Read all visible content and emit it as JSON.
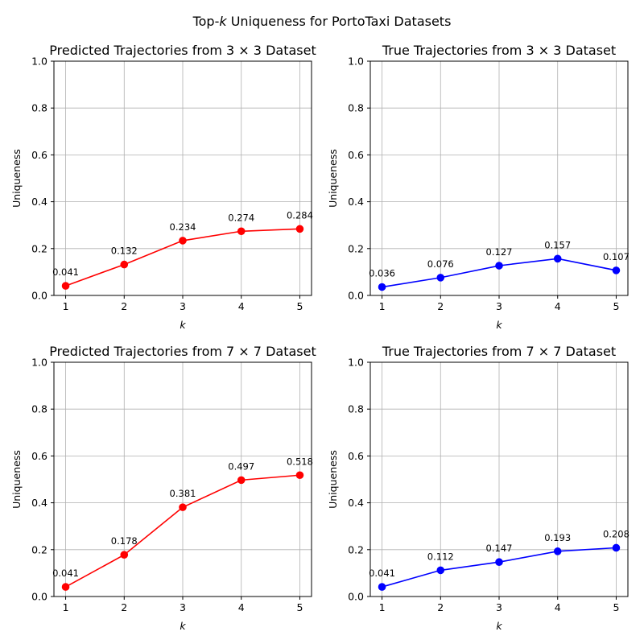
{
  "figure": {
    "title_pre": "Top-",
    "title_k": "k",
    "title_post": " Uniqueness for PortoTaxi Datasets"
  },
  "chart_data": [
    {
      "type": "line",
      "title": "Predicted Trajectories from 3 × 3 Dataset",
      "xlabel": "k",
      "ylabel": "Uniqueness",
      "x": [
        1,
        2,
        3,
        4,
        5
      ],
      "values": [
        0.041,
        0.132,
        0.234,
        0.274,
        0.284
      ],
      "data_labels": [
        "0.041",
        "0.132",
        "0.234",
        "0.274",
        "0.284"
      ],
      "xticks": [
        "1",
        "2",
        "3",
        "4",
        "5"
      ],
      "yticks": [
        "0.0",
        "0.2",
        "0.4",
        "0.6",
        "0.8",
        "1.0"
      ],
      "ylim": [
        0,
        1
      ],
      "color": "#ff0000",
      "grid": true,
      "marker": "circle"
    },
    {
      "type": "line",
      "title": "True Trajectories from 3 × 3 Dataset",
      "xlabel": "k",
      "ylabel": "Uniqueness",
      "x": [
        1,
        2,
        3,
        4,
        5
      ],
      "values": [
        0.036,
        0.076,
        0.127,
        0.157,
        0.107
      ],
      "data_labels": [
        "0.036",
        "0.076",
        "0.127",
        "0.157",
        "0.107"
      ],
      "xticks": [
        "1",
        "2",
        "3",
        "4",
        "5"
      ],
      "yticks": [
        "0.0",
        "0.2",
        "0.4",
        "0.6",
        "0.8",
        "1.0"
      ],
      "ylim": [
        0,
        1
      ],
      "color": "#0000ff",
      "grid": true,
      "marker": "circle"
    },
    {
      "type": "line",
      "title": "Predicted Trajectories from 7 × 7 Dataset",
      "xlabel": "k",
      "ylabel": "Uniqueness",
      "x": [
        1,
        2,
        3,
        4,
        5
      ],
      "values": [
        0.041,
        0.178,
        0.381,
        0.497,
        0.518
      ],
      "data_labels": [
        "0.041",
        "0.178",
        "0.381",
        "0.497",
        "0.518"
      ],
      "xticks": [
        "1",
        "2",
        "3",
        "4",
        "5"
      ],
      "yticks": [
        "0.0",
        "0.2",
        "0.4",
        "0.6",
        "0.8",
        "1.0"
      ],
      "ylim": [
        0,
        1
      ],
      "color": "#ff0000",
      "grid": true,
      "marker": "circle"
    },
    {
      "type": "line",
      "title": "True Trajectories from 7 × 7 Dataset",
      "xlabel": "k",
      "ylabel": "Uniqueness",
      "x": [
        1,
        2,
        3,
        4,
        5
      ],
      "values": [
        0.041,
        0.112,
        0.147,
        0.193,
        0.208
      ],
      "data_labels": [
        "0.041",
        "0.112",
        "0.147",
        "0.193",
        "0.208"
      ],
      "xticks": [
        "1",
        "2",
        "3",
        "4",
        "5"
      ],
      "yticks": [
        "0.0",
        "0.2",
        "0.4",
        "0.6",
        "0.8",
        "1.0"
      ],
      "ylim": [
        0,
        1
      ],
      "color": "#0000ff",
      "grid": true,
      "marker": "circle"
    }
  ]
}
